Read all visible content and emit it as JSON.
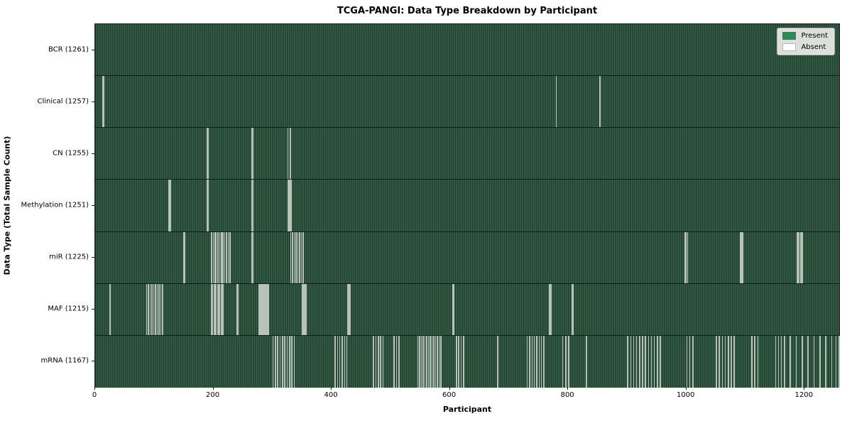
{
  "chart_data": {
    "type": "heatmap",
    "title": "TCGA-PANGI: Data Type Breakdown by Participant",
    "xlabel": "Participant",
    "ylabel": "Data Type (Total Sample Count)",
    "x_ticks": [
      0,
      200,
      400,
      600,
      800,
      1000,
      1200
    ],
    "x_range": [
      0,
      1261
    ],
    "grid": false,
    "legend": {
      "position": "upper right",
      "items": [
        {
          "label": "Present",
          "color": "#2e8b57"
        },
        {
          "label": "Absent",
          "color": "#ffffff"
        }
      ]
    },
    "colors": {
      "present": "#2e8b57",
      "present_dark": "#234130",
      "present_light": "#346049",
      "absent_line": "#b9c2b9",
      "axis": "#1c1c1c",
      "legend_bg": "#dcdfdc"
    },
    "rows": [
      {
        "data_type": "BCR",
        "label": "BCR (1261)",
        "total_samples": 1261,
        "absent_participants": []
      },
      {
        "data_type": "Clinical",
        "label": "Clinical (1257)",
        "total_samples": 1257,
        "absent_participants": [
          12,
          14,
          779,
          853
        ]
      },
      {
        "data_type": "CN",
        "label": "CN (1255)",
        "total_samples": 1255,
        "absent_participants": [
          188,
          190,
          264,
          266,
          325,
          329
        ]
      },
      {
        "data_type": "Methylation",
        "label": "Methylation (1251)",
        "total_samples": 1251,
        "absent_participants": [
          124,
          126,
          188,
          190,
          264,
          266,
          325,
          327,
          329,
          331
        ]
      },
      {
        "data_type": "miR",
        "label": "miR (1225)",
        "total_samples": 1225,
        "absent_participants": [
          149,
          151,
          196,
          199,
          202,
          204,
          207,
          210,
          213,
          215,
          218,
          221,
          224,
          227,
          264,
          266,
          330,
          333,
          336,
          339,
          342,
          345,
          348,
          351,
          997,
          999,
          1001,
          1090,
          1092,
          1094,
          1186,
          1188,
          1190,
          1192,
          1194,
          1196
        ]
      },
      {
        "data_type": "MAF",
        "label": "MAF (1215)",
        "total_samples": 1215,
        "absent_participants": [
          24,
          86,
          89,
          92,
          95,
          98,
          101,
          104,
          107,
          110,
          113,
          196,
          198,
          200,
          202,
          204,
          206,
          208,
          210,
          212,
          214,
          216,
          239,
          241,
          276,
          278,
          280,
          282,
          284,
          286,
          288,
          290,
          292,
          350,
          352,
          354,
          356,
          426,
          428,
          430,
          604,
          606,
          768,
          770,
          806,
          808
        ]
      },
      {
        "data_type": "mRNA",
        "label": "mRNA (1167)",
        "total_samples": 1167,
        "absent_participants": [
          300,
          304,
          308,
          312,
          316,
          320,
          324,
          328,
          332,
          336,
          405,
          409,
          413,
          417,
          421,
          425,
          470,
          474,
          478,
          482,
          486,
          505,
          509,
          513,
          545,
          548,
          551,
          554,
          557,
          560,
          563,
          566,
          569,
          572,
          575,
          578,
          581,
          584,
          610,
          614,
          618,
          622,
          680,
          730,
          734,
          738,
          742,
          746,
          750,
          754,
          758,
          790,
          795,
          800,
          830,
          900,
          905,
          910,
          915,
          920,
          925,
          930,
          935,
          940,
          945,
          950,
          955,
          1000,
          1005,
          1010,
          1050,
          1055,
          1060,
          1065,
          1070,
          1075,
          1080,
          1110,
          1115,
          1120,
          1150,
          1155,
          1160,
          1165,
          1175,
          1185,
          1195,
          1205,
          1215,
          1225,
          1235,
          1245,
          1252,
          1258
        ]
      }
    ]
  }
}
